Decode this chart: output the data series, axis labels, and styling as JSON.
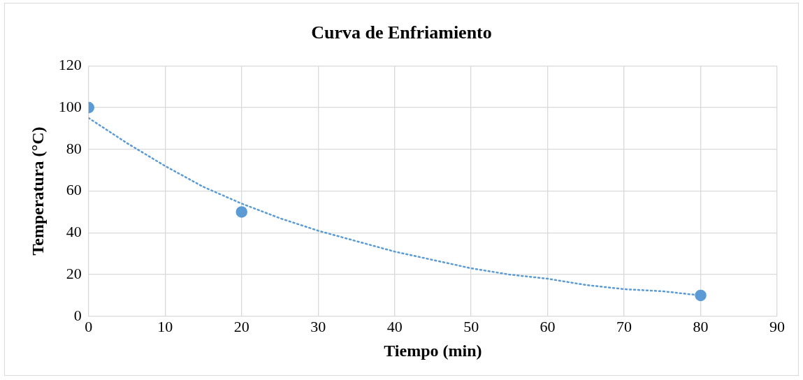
{
  "chart_data": {
    "type": "scatter",
    "title": "Curva de Enfriamiento",
    "xlabel": "Tiempo (min)",
    "ylabel": "Temperatura (°C)",
    "xlim": [
      0,
      90
    ],
    "xticks": [
      0,
      10,
      20,
      30,
      40,
      50,
      60,
      70,
      80,
      90
    ],
    "ylim": [
      0,
      120
    ],
    "yticks": [
      0,
      20,
      40,
      60,
      80,
      100,
      120
    ],
    "grid": true,
    "series": [
      {
        "type": "scatter",
        "color": "#5b9bd5",
        "marker": "circle",
        "x": [
          0,
          20,
          80
        ],
        "values": [
          100,
          50,
          10
        ]
      },
      {
        "type": "line",
        "color": "#5b9bd5",
        "marker": "none",
        "line_style": "dotted",
        "x": [
          0,
          5,
          10,
          15,
          20,
          25,
          30,
          35,
          40,
          45,
          50,
          55,
          60,
          65,
          70,
          75,
          80
        ],
        "values": [
          95,
          83,
          72,
          62,
          54,
          47,
          41,
          36,
          31,
          27,
          23,
          20,
          18,
          15,
          13,
          12,
          10
        ]
      }
    ]
  }
}
